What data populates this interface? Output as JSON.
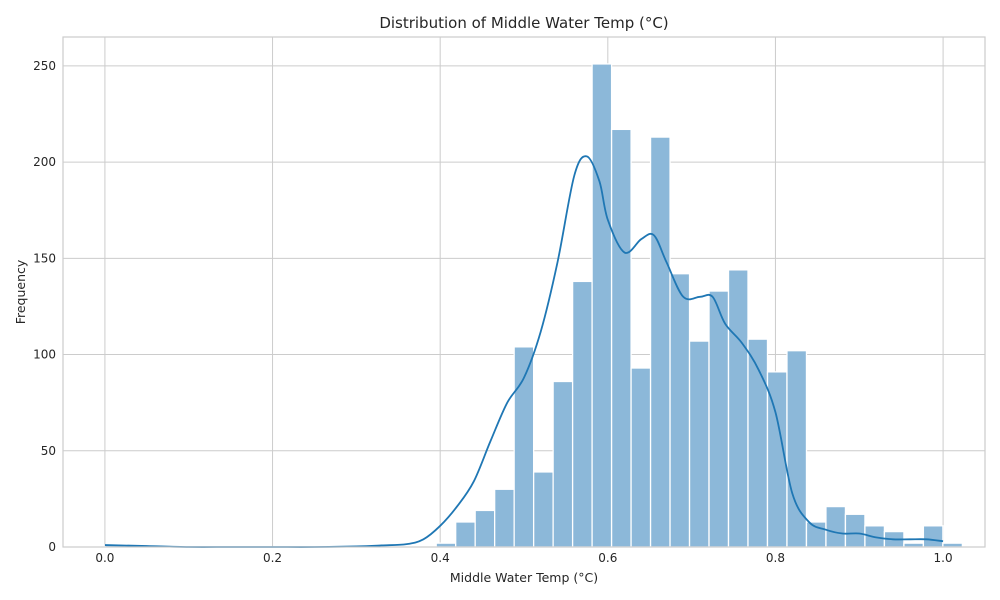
{
  "chart_data": {
    "type": "bar",
    "subtype": "histogram-with-kde",
    "title": "Distribution of Middle Water Temp (°C)",
    "xlabel": "Middle Water Temp (°C)",
    "ylabel": "Frequency",
    "xlim": [
      -0.05,
      1.05
    ],
    "ylim": [
      0,
      265
    ],
    "xticks": [
      "0.0",
      "0.2",
      "0.4",
      "0.6",
      "0.8",
      "1.0"
    ],
    "yticks": [
      "0",
      "50",
      "100",
      "150",
      "200",
      "250"
    ],
    "grid": true,
    "legend": "none",
    "bins": {
      "edges_start": 0.0,
      "bin_width": 0.02325,
      "counts": [
        1,
        0,
        0,
        0,
        0,
        0,
        0,
        0,
        0,
        0,
        0,
        0,
        0,
        0,
        0,
        0,
        0,
        2,
        13,
        19,
        30,
        104,
        39,
        86,
        138,
        251,
        217,
        93,
        213,
        142,
        107,
        133,
        144,
        108,
        91,
        102,
        13,
        21,
        17,
        11,
        8,
        2,
        11,
        2
      ]
    },
    "kde": {
      "x": [
        0.0,
        0.05,
        0.1,
        0.15,
        0.2,
        0.25,
        0.3,
        0.33,
        0.36,
        0.38,
        0.4,
        0.42,
        0.44,
        0.46,
        0.48,
        0.5,
        0.52,
        0.54,
        0.56,
        0.575,
        0.59,
        0.6,
        0.62,
        0.64,
        0.655,
        0.67,
        0.69,
        0.71,
        0.725,
        0.74,
        0.76,
        0.78,
        0.8,
        0.82,
        0.84,
        0.86,
        0.88,
        0.9,
        0.92,
        0.94,
        0.96,
        0.98,
        1.0
      ],
      "y": [
        1,
        0.5,
        0,
        0,
        0,
        0,
        0.3,
        0.8,
        1.5,
        4,
        11,
        21,
        34,
        55,
        75,
        88,
        112,
        148,
        193,
        203,
        190,
        170,
        153,
        160,
        162,
        148,
        130,
        130,
        130,
        116,
        106,
        92,
        70,
        28,
        13,
        9,
        7,
        7,
        5,
        4,
        4,
        4,
        3
      ]
    },
    "colors": {
      "bar": "#8cb8d9",
      "kde": "#1f77b4",
      "grid": "#cccccc"
    }
  }
}
